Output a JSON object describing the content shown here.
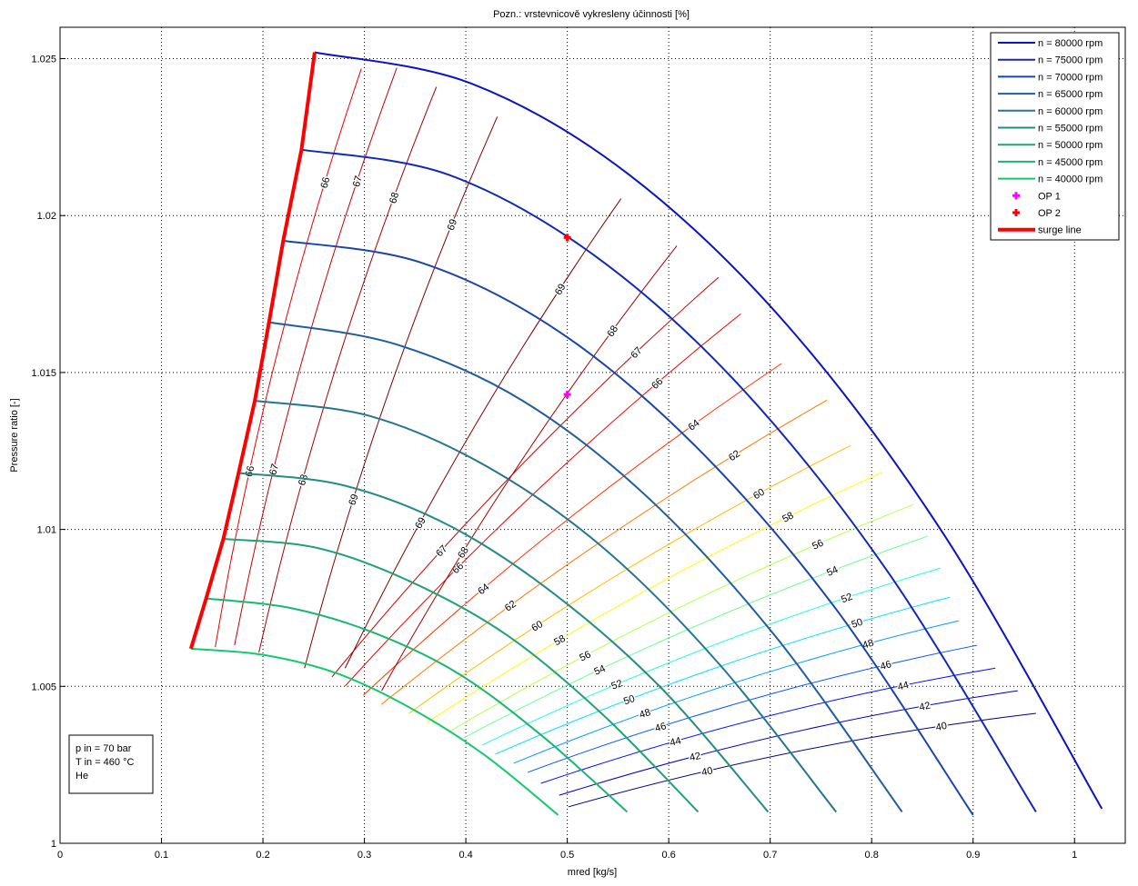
{
  "chart_data": {
    "type": "line",
    "title": "Pozn.: vrstevnicově vykresleny účinnosti [%]",
    "xlabel": "mred [kg/s]",
    "ylabel": "Pressure ratio [-]",
    "xlim": [
      0,
      1.05
    ],
    "ylim": [
      1,
      1.026
    ],
    "grid": true,
    "legend_position": "top-right",
    "xticks": [
      0,
      0.1,
      0.2,
      0.3,
      0.4,
      0.5,
      0.6,
      0.7,
      0.8,
      0.9,
      1
    ],
    "xtick_labels": [
      "0",
      "0.1",
      "0.2",
      "0.3",
      "0.4",
      "0.5",
      "0.6",
      "0.7",
      "0.8",
      "0.9",
      "1"
    ],
    "yticks": [
      1,
      1.005,
      1.01,
      1.015,
      1.02,
      1.025
    ],
    "ytick_labels": [
      "1",
      "1.005",
      "1.01",
      "1.015",
      "1.02",
      "1.025"
    ],
    "series": [
      {
        "name": "n = 80000 rpm",
        "color": "#0a14c4",
        "points": [
          [
            0.251,
            1.0252
          ],
          [
            0.406,
            1.0242
          ],
          [
            0.561,
            1.0213
          ],
          [
            0.717,
            1.0165
          ],
          [
            0.872,
            1.0098
          ],
          [
            1.027,
            1.0011
          ]
        ]
      },
      {
        "name": "n = 75000 rpm",
        "color": "#1228b8",
        "points": [
          [
            0.238,
            1.0221
          ],
          [
            0.383,
            1.0213
          ],
          [
            0.528,
            1.0187
          ],
          [
            0.672,
            1.0145
          ],
          [
            0.817,
            1.0086
          ],
          [
            0.962,
            1.001
          ]
        ]
      },
      {
        "name": "n = 70000 rpm",
        "color": "#1a44aa",
        "points": [
          [
            0.22,
            1.0192
          ],
          [
            0.356,
            1.0185
          ],
          [
            0.492,
            1.0163
          ],
          [
            0.628,
            1.0126
          ],
          [
            0.764,
            1.0075
          ],
          [
            0.9,
            1.0009
          ]
        ]
      },
      {
        "name": "n = 65000 rpm",
        "color": "#205e9c",
        "points": [
          [
            0.206,
            1.0166
          ],
          [
            0.331,
            1.0159
          ],
          [
            0.456,
            1.0141
          ],
          [
            0.58,
            1.011
          ],
          [
            0.705,
            1.0066
          ],
          [
            0.83,
            1.001
          ]
        ]
      },
      {
        "name": "n = 60000 rpm",
        "color": "#23768e",
        "points": [
          [
            0.192,
            1.0141
          ],
          [
            0.307,
            1.0136
          ],
          [
            0.421,
            1.012
          ],
          [
            0.536,
            1.0094
          ],
          [
            0.65,
            1.0057
          ],
          [
            0.765,
            1.001
          ]
        ]
      },
      {
        "name": "n = 55000 rpm",
        "color": "#248c82",
        "points": [
          [
            0.176,
            1.0118
          ],
          [
            0.28,
            1.0114
          ],
          [
            0.385,
            1.0101
          ],
          [
            0.489,
            1.0079
          ],
          [
            0.594,
            1.0049
          ],
          [
            0.698,
            1.001
          ]
        ]
      },
      {
        "name": "n = 50000 rpm",
        "color": "#1fa277",
        "points": [
          [
            0.161,
            1.0097
          ],
          [
            0.255,
            1.0094
          ],
          [
            0.348,
            1.0083
          ],
          [
            0.442,
            1.0066
          ],
          [
            0.535,
            1.0041
          ],
          [
            0.629,
            1.001
          ]
        ]
      },
      {
        "name": "n = 45000 rpm",
        "color": "#19b670",
        "points": [
          [
            0.144,
            1.0078
          ],
          [
            0.227,
            1.0075
          ],
          [
            0.31,
            1.0067
          ],
          [
            0.393,
            1.0054
          ],
          [
            0.476,
            1.0034
          ],
          [
            0.559,
            1.001
          ]
        ]
      },
      {
        "name": "n = 40000 rpm",
        "color": "#12ca6c",
        "points": [
          [
            0.129,
            1.0062
          ],
          [
            0.201,
            1.006
          ],
          [
            0.274,
            1.0054
          ],
          [
            0.346,
            1.0043
          ],
          [
            0.419,
            1.0028
          ],
          [
            0.491,
            1.0009
          ]
        ]
      }
    ],
    "operating_points": [
      {
        "name": "OP 1",
        "x": 0.5,
        "y": 1.0143,
        "color": "#ff00ff"
      },
      {
        "name": "OP 2",
        "x": 0.5,
        "y": 1.0193,
        "color": "#ff0000"
      }
    ],
    "surge_line": {
      "name": "surge line",
      "color": "#ff0000",
      "points": [
        [
          0.129,
          1.0062
        ],
        [
          0.144,
          1.0078
        ],
        [
          0.161,
          1.0097
        ],
        [
          0.176,
          1.0118
        ],
        [
          0.192,
          1.0141
        ],
        [
          0.206,
          1.0166
        ],
        [
          0.22,
          1.0192
        ],
        [
          0.238,
          1.0221
        ],
        [
          0.251,
          1.0252
        ]
      ]
    },
    "efficiency_contours": [
      {
        "level": 40,
        "label": "40",
        "from": [
          0.501,
          1.00116
        ],
        "to": [
          0.962,
          1.00414
        ]
      },
      {
        "level": 42,
        "label": "42",
        "from": [
          0.492,
          1.00153
        ],
        "to": [
          0.944,
          1.00486
        ]
      },
      {
        "level": 44,
        "label": "44",
        "from": [
          0.474,
          1.00191
        ],
        "to": [
          0.922,
          1.00558
        ]
      },
      {
        "level": 46,
        "label": "46",
        "from": [
          0.461,
          1.00226
        ],
        "to": [
          0.904,
          1.00631
        ]
      },
      {
        "level": 48,
        "label": "48",
        "from": [
          0.447,
          1.00255
        ],
        "to": [
          0.886,
          1.00709
        ]
      },
      {
        "level": 50,
        "label": "50",
        "from": [
          0.429,
          1.00284
        ],
        "to": [
          0.877,
          1.00784
        ]
      },
      {
        "level": 52,
        "label": "52",
        "from": [
          0.416,
          1.00313
        ],
        "to": [
          0.868,
          1.00877
        ]
      },
      {
        "level": 54,
        "label": "54",
        "from": [
          0.398,
          1.00336
        ],
        "to": [
          0.855,
          1.00978
        ]
      },
      {
        "level": 56,
        "label": "56",
        "from": [
          0.384,
          1.00356
        ],
        "to": [
          0.841,
          1.01079
        ]
      },
      {
        "level": 58,
        "label": "58",
        "from": [
          0.362,
          1.00385
        ],
        "to": [
          0.81,
          1.01181
        ]
      },
      {
        "level": 60,
        "label": "60",
        "from": [
          0.344,
          1.00414
        ],
        "to": [
          0.779,
          1.01267
        ]
      },
      {
        "level": 62,
        "label": "62",
        "from": [
          0.317,
          1.00443
        ],
        "to": [
          0.756,
          1.01412
        ]
      },
      {
        "level": 64,
        "label": "64",
        "from": [
          0.299,
          1.00472
        ],
        "to": [
          0.711,
          1.01528
        ]
      },
      {
        "level": 66,
        "label": "66",
        "from": [
          0.281,
          1.00501
        ],
        "to": [
          0.671,
          1.01687
        ]
      },
      {
        "level": 67,
        "label": "67",
        "from": [
          0.268,
          1.0053
        ],
        "to": [
          0.649,
          1.01803
        ]
      },
      {
        "level": 68,
        "label": "68",
        "from": [
          0.317,
          1.00486
        ],
        "to": [
          0.608,
          1.01904
        ]
      },
      {
        "level": 69,
        "label": "69",
        "from": [
          0.281,
          1.00558
        ],
        "to": [
          0.553,
          1.02054
        ]
      },
      {
        "level": 69,
        "label": "69",
        "from": [
          0.241,
          1.00558
        ],
        "to": [
          0.431,
          1.02315
        ]
      },
      {
        "level": 68,
        "label": "68",
        "from": [
          0.196,
          1.00608
        ],
        "to": [
          0.371,
          1.0241
        ]
      },
      {
        "level": 67,
        "label": "67",
        "from": [
          0.172,
          1.00631
        ],
        "to": [
          0.332,
          1.02471
        ]
      },
      {
        "level": 66,
        "label": "66",
        "from": [
          0.153,
          1.00625
        ],
        "to": [
          0.297,
          1.02468
        ]
      }
    ],
    "annotation_box": [
      "p in = 70 bar",
      "T in = 460 °C",
      "He"
    ]
  }
}
